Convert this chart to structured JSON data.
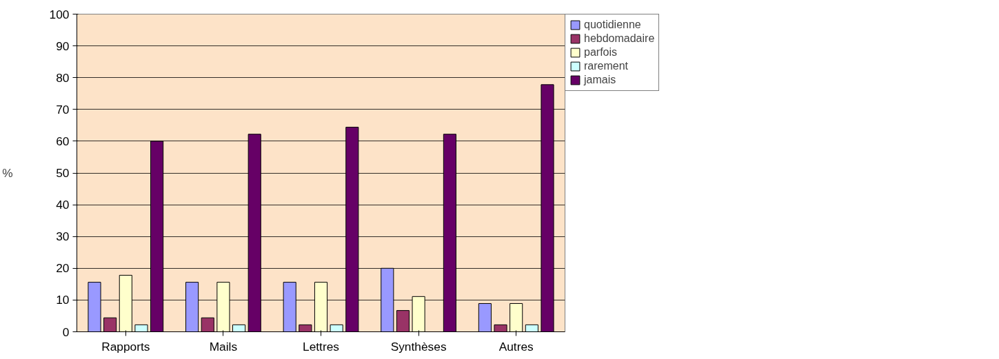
{
  "chart_data": {
    "type": "bar",
    "ylabel": "%",
    "categories": [
      "Rapports",
      "Mails",
      "Lettres",
      "Synthèses",
      "Autres"
    ],
    "series": [
      {
        "name": "quotidienne",
        "color": "#9999ff",
        "values": [
          15.6,
          15.6,
          15.6,
          20,
          8.9
        ]
      },
      {
        "name": "hebdomadaire",
        "color": "#993366",
        "values": [
          4.4,
          4.4,
          2.2,
          6.7,
          2.2
        ]
      },
      {
        "name": "parfois",
        "color": "#ffffcc",
        "values": [
          17.8,
          15.6,
          15.6,
          11.1,
          8.9
        ]
      },
      {
        "name": "rarement",
        "color": "#ccffff",
        "values": [
          2.2,
          2.2,
          2.2,
          0,
          2.2
        ]
      },
      {
        "name": "jamais",
        "color": "#660066",
        "values": [
          60,
          62.2,
          64.4,
          62.2,
          77.8
        ]
      }
    ],
    "ylim": [
      0,
      100
    ],
    "yticks": [
      0,
      10,
      20,
      30,
      40,
      50,
      60,
      70,
      80,
      90,
      100
    ],
    "grid": "y",
    "legend": "right"
  }
}
